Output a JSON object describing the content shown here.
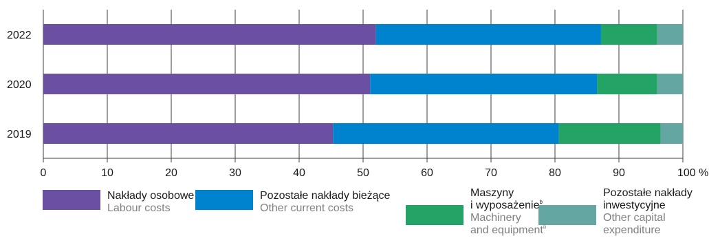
{
  "chart_data": {
    "type": "bar",
    "orientation": "horizontal",
    "stacked": true,
    "categories": [
      "2022",
      "2020",
      "2019"
    ],
    "series": [
      {
        "name": "Nakłady osobowe",
        "name_en": "Labour costs",
        "color": "#6a4fa2",
        "values": [
          52.0,
          51.1,
          45.3
        ]
      },
      {
        "name": "Pozostałe nakłady bieżące",
        "name_en": "Other current costs",
        "color": "#0083cf",
        "values": [
          35.2,
          35.5,
          35.3
        ]
      },
      {
        "name": "Maszyny i wyposażenie",
        "name_en": "Machinery and equipment",
        "footnote": "b",
        "color": "#23a466",
        "values": [
          8.8,
          9.4,
          15.9
        ]
      },
      {
        "name": "Pozostałe nakłady inwestycyjne",
        "name_en": "Other capital expenditure",
        "color": "#64a6a2",
        "values": [
          4.0,
          4.0,
          3.5
        ]
      }
    ],
    "xlim": [
      0,
      100
    ],
    "xticks": [
      "0",
      "10",
      "20",
      "30",
      "40",
      "50",
      "60",
      "70",
      "80",
      "90",
      "100 %"
    ],
    "grid": true,
    "legend": "bottom"
  },
  "legend": {
    "labour_pl": "Nakłady osobowe",
    "labour_en": "Labour costs",
    "current_pl": "Pozostałe nakłady bieżące",
    "current_en": "Other current costs",
    "machinery_pl_1": "Maszyny",
    "machinery_pl_2": "i wyposażenie",
    "machinery_pl_sup": "b",
    "machinery_en_1": "Machinery",
    "machinery_en_2": "and equipment",
    "machinery_en_sup": "b",
    "capital_pl_1": "Pozostałe nakłady",
    "capital_pl_2": "inwestycyjne",
    "capital_en_1": "Other capital",
    "capital_en_2": "expenditure"
  }
}
